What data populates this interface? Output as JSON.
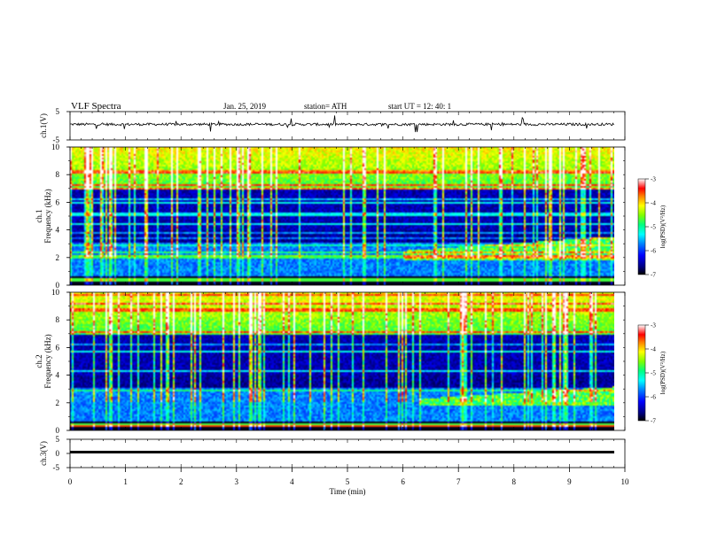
{
  "header": {
    "title": "VLF  Spectra",
    "date": "Jan. 25, 2019",
    "station": "station= ATH",
    "start": "start  UT  =   12: 40: 1"
  },
  "chart_data": [
    {
      "type": "line",
      "panel": "ch1-waveform",
      "ylabel": "ch.1(V)",
      "ylim": [
        -5,
        5
      ],
      "yticks": [
        "5",
        "-5"
      ],
      "xlim": [
        0,
        10
      ],
      "series": [
        {
          "x_range": [
            0,
            9.8
          ],
          "baseline": 0.5,
          "noise_amplitude": 0.9,
          "color": "#000000"
        }
      ]
    },
    {
      "type": "heatmap",
      "panel": "ch1-spectrogram",
      "ylabel": "ch.1\nFrequency (kHz)",
      "ylim": [
        0,
        10
      ],
      "yticks": [
        "0",
        "2",
        "4",
        "6",
        "8",
        "10"
      ],
      "xlim": [
        0,
        10
      ],
      "data_x_range": [
        0,
        9.8
      ],
      "colorbar": {
        "label": "log(PSD)(V²/Hz)",
        "range": [
          -7,
          -3
        ],
        "ticks": [
          "-3",
          "-4",
          "-5",
          "-6",
          "-7"
        ]
      },
      "features": {
        "high_band_kHz": [
          7,
          10
        ],
        "low_band_kHz": [
          0,
          3
        ],
        "rising_band_start_min": 6.0,
        "rising_band_upper_kHz": 3.5
      }
    },
    {
      "type": "heatmap",
      "panel": "ch2-spectrogram",
      "ylabel": "ch.2\nFrequency (kHz)",
      "ylim": [
        0,
        10
      ],
      "yticks": [
        "0",
        "2",
        "4",
        "6",
        "8",
        "10"
      ],
      "xlim": [
        0,
        10
      ],
      "data_x_range": [
        0,
        9.8
      ],
      "colorbar": {
        "label": "log(PSD)(V²/Hz)",
        "range": [
          -7,
          -3
        ],
        "ticks": [
          "-3",
          "-4",
          "-5",
          "-6",
          "-7"
        ]
      },
      "features": {
        "high_band_kHz": [
          7,
          10
        ],
        "low_band_kHz": [
          0,
          3
        ],
        "rising_band_start_min": 6.3,
        "rising_band_upper_kHz": 3.2
      }
    },
    {
      "type": "line",
      "panel": "ch3-waveform",
      "ylabel": "ch.3(V)",
      "ylim": [
        -5,
        5
      ],
      "yticks": [
        "5",
        "0",
        "-5"
      ],
      "xlim": [
        0,
        10
      ],
      "series": [
        {
          "x_range": [
            0,
            9.8
          ],
          "baseline": -1.5,
          "noise_amplitude": 0.15,
          "color": "#000000"
        }
      ]
    }
  ],
  "xaxis": {
    "label": "Time  (min)",
    "ticks": [
      "0",
      "1",
      "2",
      "3",
      "4",
      "5",
      "6",
      "7",
      "8",
      "9",
      "10"
    ]
  },
  "colors": {
    "colormap": [
      "#000000",
      "#00007f",
      "#0000ff",
      "#0080ff",
      "#00ffff",
      "#00ff80",
      "#80ff00",
      "#ffff00",
      "#ff8000",
      "#ff0000",
      "#ffffff"
    ]
  }
}
